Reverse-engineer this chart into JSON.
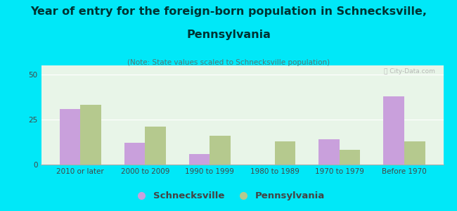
{
  "title_line1": "Year of entry for the foreign-born population in Schnecksville,",
  "title_line2": "Pennsylvania",
  "subtitle": "(Note: State values scaled to Schnecksville population)",
  "categories": [
    "2010 or later",
    "2000 to 2009",
    "1990 to 1999",
    "1980 to 1989",
    "1970 to 1979",
    "Before 1970"
  ],
  "schnecksville": [
    31,
    12,
    6,
    0,
    14,
    38
  ],
  "pennsylvania": [
    33,
    21,
    16,
    13,
    8,
    13
  ],
  "color_schnecksville": "#c9a0dc",
  "color_pennsylvania": "#b5c98e",
  "background_outer": "#00e8f8",
  "background_inner": "#e8f5e8",
  "ylim": [
    0,
    55
  ],
  "yticks": [
    0,
    25,
    50
  ],
  "bar_width": 0.32,
  "title_fontsize": 11.5,
  "subtitle_fontsize": 7.5,
  "tick_fontsize": 7.5,
  "legend_fontsize": 9.5,
  "title_color": "#003333",
  "tick_color": "#444444"
}
